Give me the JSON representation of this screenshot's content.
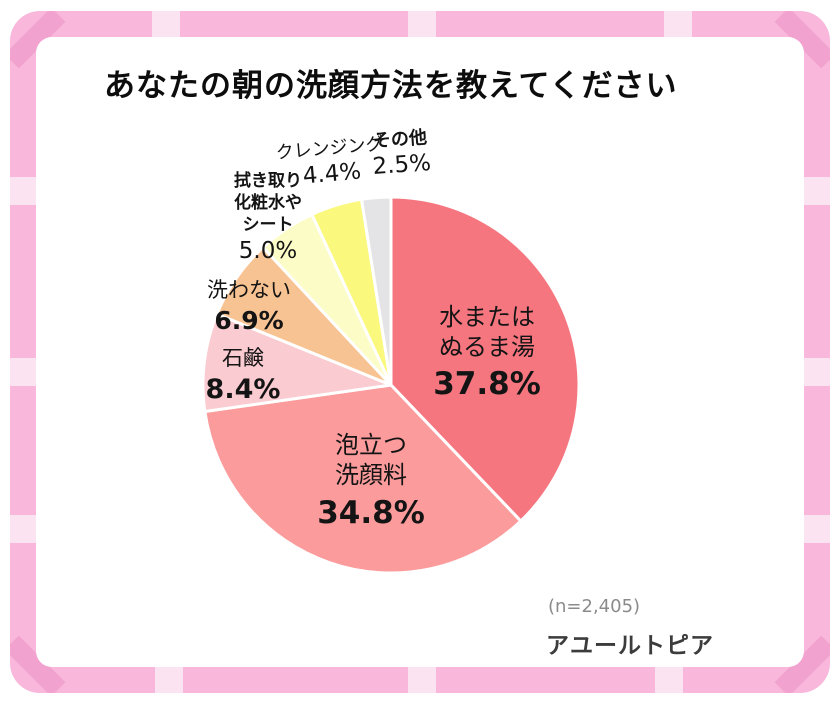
{
  "title": "あなたの朝の洗顔方法を教えてください",
  "theme": {
    "frame_pink": "#F8B7DB",
    "frame_stripe": "#FCE3F1",
    "frame_corner": "#F1A2CE",
    "slice_border": "#FFFFFF",
    "text_color": "#141414"
  },
  "footer": {
    "sample_size": "(n=2,405)",
    "brand": "アユールトピア"
  },
  "chart_data": {
    "type": "pie",
    "title": "あなたの朝の洗顔方法を教えてください",
    "sample_size": 2405,
    "start_angle_deg": -90,
    "direction": "clockwise",
    "legend_position": "labels-on-chart",
    "slices": [
      {
        "label": "水またはぬるま湯",
        "label_lines": [
          "水または",
          "ぬるま湯"
        ],
        "value": 37.8,
        "pct_label": "37.8%",
        "color": "#F5767F"
      },
      {
        "label": "泡立つ洗顔料",
        "label_lines": [
          "泡立つ",
          "洗顔料"
        ],
        "value": 34.8,
        "pct_label": "34.8%",
        "color": "#FC9B9B"
      },
      {
        "label": "石鹸",
        "label_lines": [
          "石鹸"
        ],
        "value": 8.4,
        "pct_label": "8.4%",
        "color": "#FACBD1"
      },
      {
        "label": "洗わない",
        "label_lines": [
          "洗わない"
        ],
        "value": 6.9,
        "pct_label": "6.9%",
        "color": "#F8C392"
      },
      {
        "label": "拭き取り化粧水やシート",
        "label_lines": [
          "拭き取り",
          "化粧水や",
          "シート"
        ],
        "value": 5.0,
        "pct_label": "5.0%",
        "color": "#FCFCC7"
      },
      {
        "label": "クレンジング",
        "label_lines": [
          "クレンジング"
        ],
        "value": 4.4,
        "pct_label": "4.4%",
        "color": "#FAF87D"
      },
      {
        "label": "その他",
        "label_lines": [
          "その他"
        ],
        "value": 2.5,
        "pct_label": "2.5%",
        "color": "#E4E3E6"
      }
    ]
  }
}
